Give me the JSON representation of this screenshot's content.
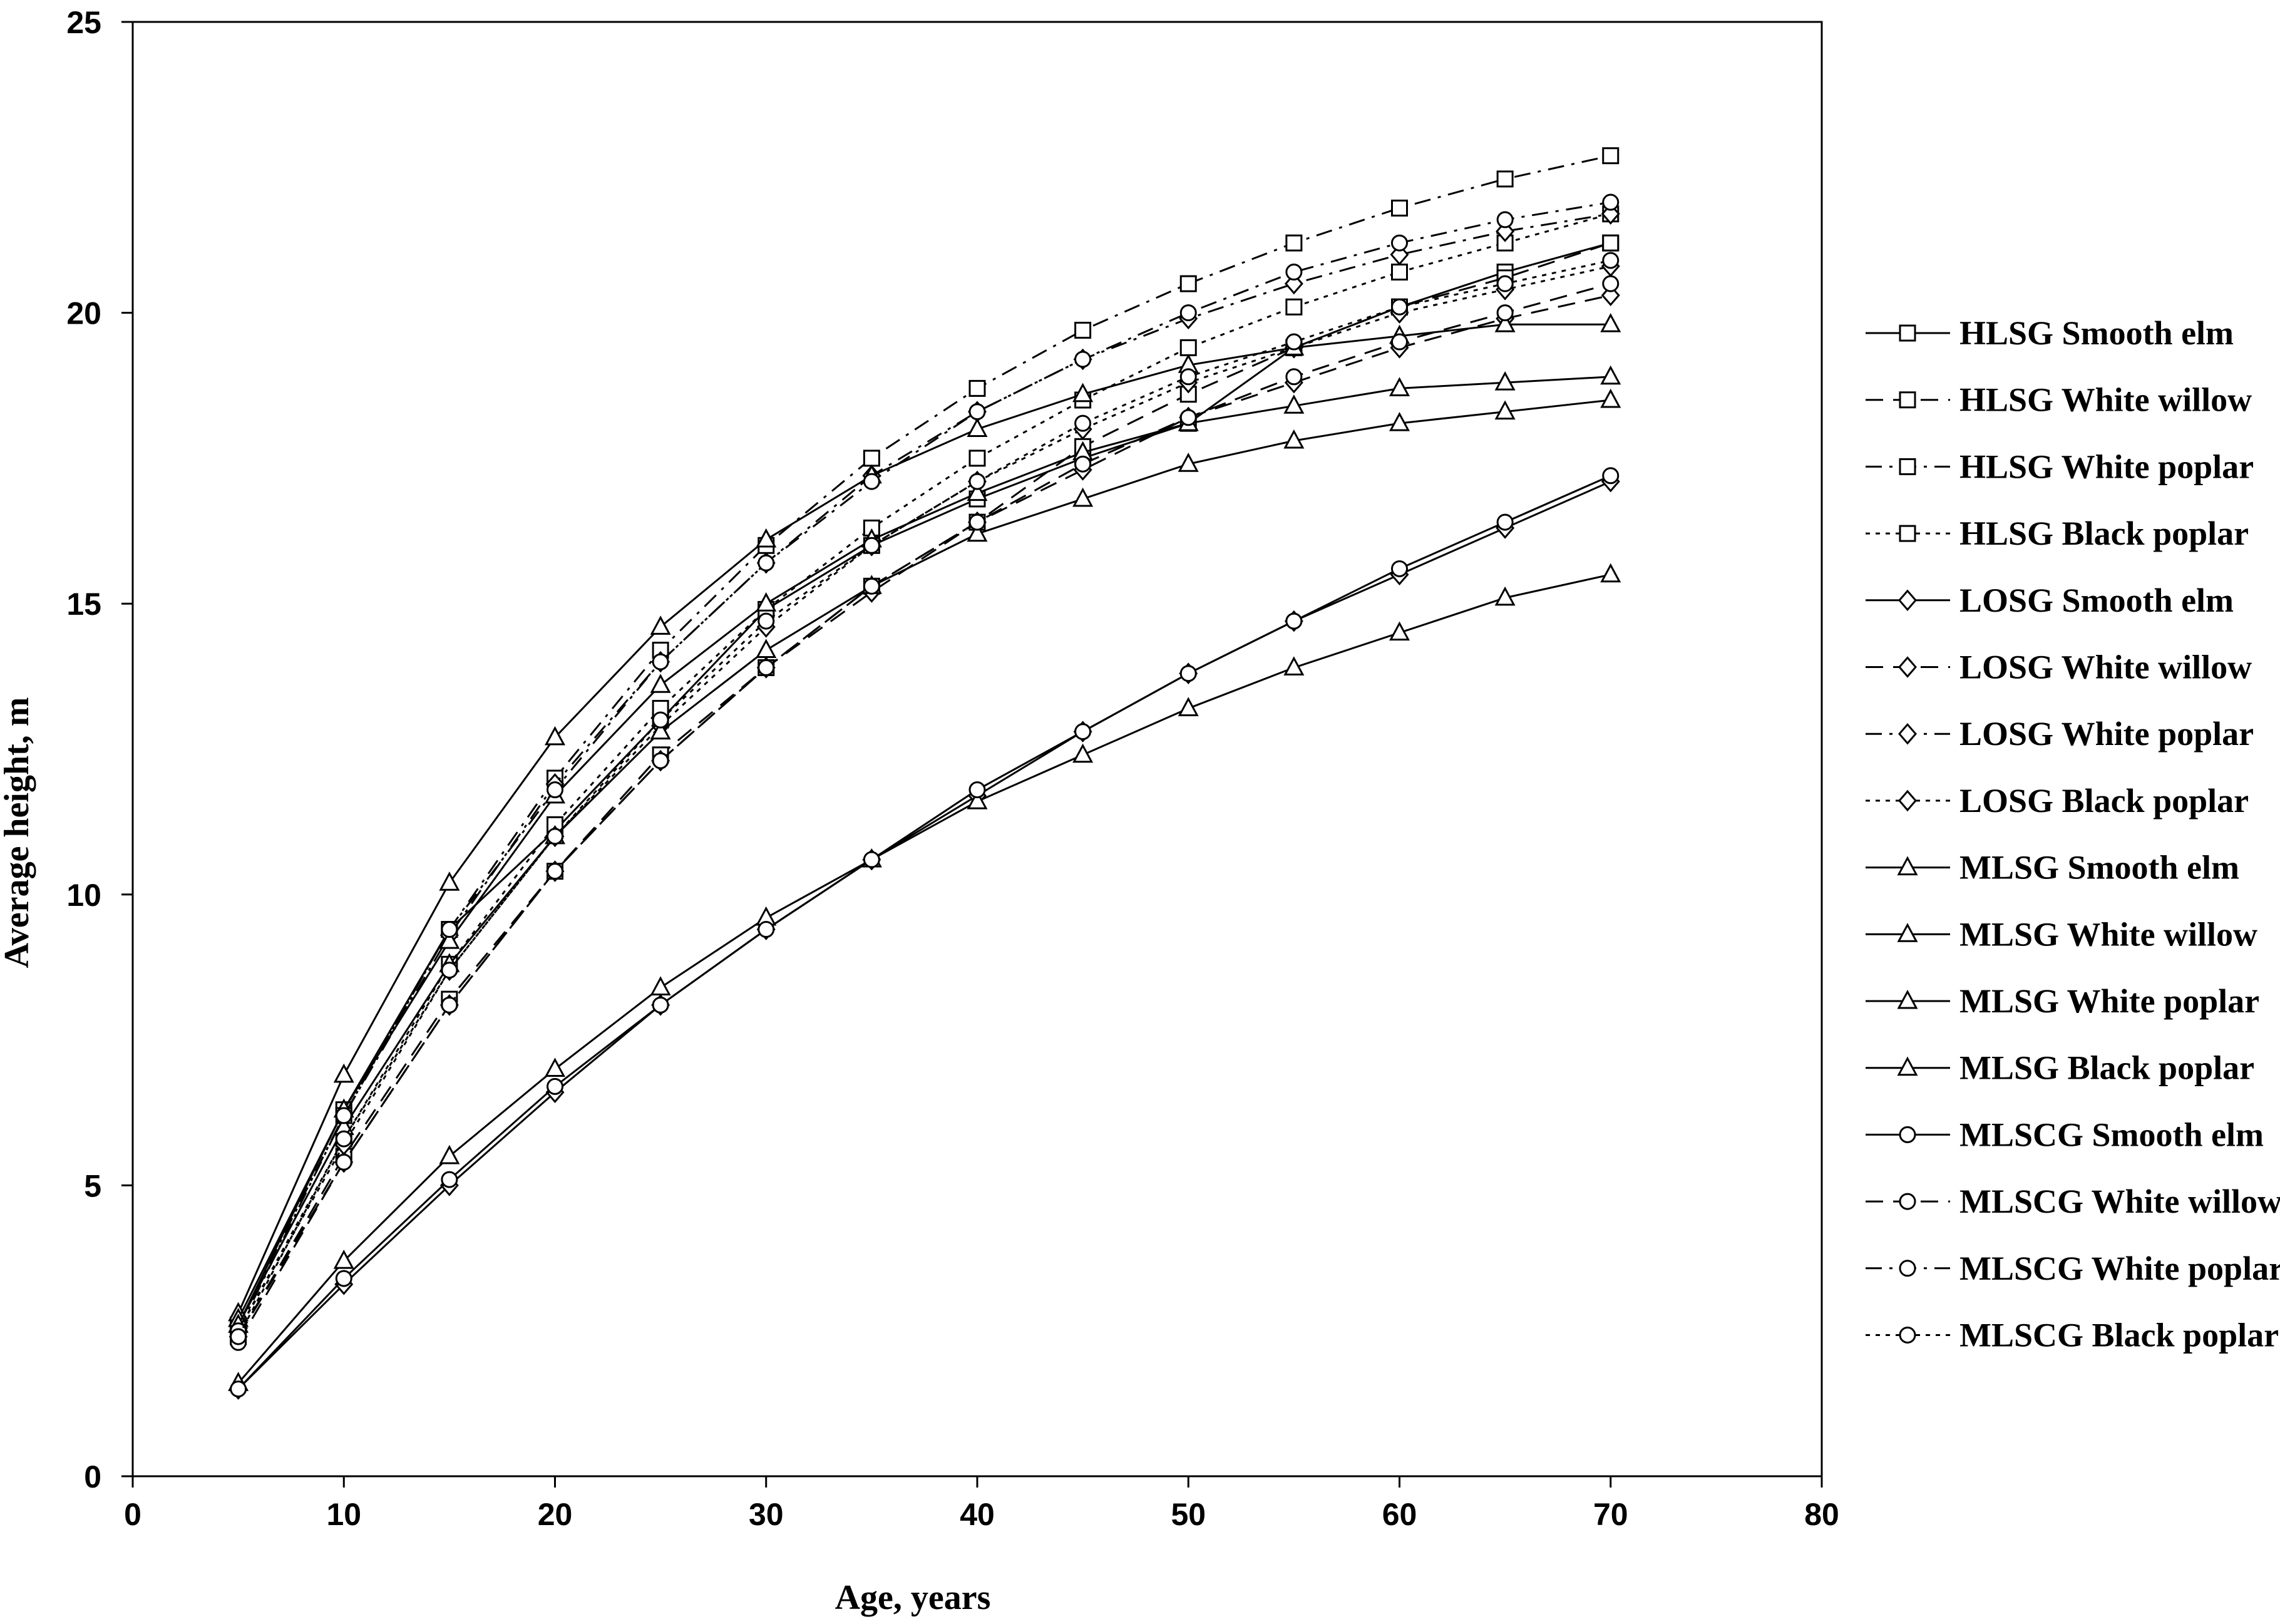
{
  "chart_data": {
    "type": "line",
    "xlabel": "Age, years",
    "ylabel": "Average height, m",
    "xlim": [
      0,
      80
    ],
    "ylim": [
      0,
      25
    ],
    "x_ticks": [
      "0",
      "10",
      "20",
      "30",
      "40",
      "50",
      "60",
      "70",
      "80"
    ],
    "y_ticks": [
      "0",
      "5",
      "10",
      "15",
      "20",
      "25"
    ],
    "grid": false,
    "legend_position": "right",
    "x": [
      5,
      10,
      15,
      20,
      25,
      30,
      35,
      40,
      45,
      50,
      55,
      60,
      65,
      70
    ],
    "series": [
      {
        "name": "HLSG Smooth  elm",
        "marker": "square",
        "dash": "solid",
        "values": [
          2.6,
          6.3,
          9.4,
          11.1,
          13.0,
          14.9,
          16.0,
          16.8,
          17.5,
          18.1,
          19.4,
          20.1,
          20.7,
          21.2
        ]
      },
      {
        "name": "HLSG White willow",
        "marker": "square",
        "dash": "dash",
        "values": [
          2.4,
          5.5,
          8.2,
          10.4,
          12.4,
          13.9,
          15.3,
          16.4,
          17.7,
          18.6,
          19.4,
          20.1,
          20.6,
          21.2
        ]
      },
      {
        "name": "HLSG White poplar",
        "marker": "square",
        "dash": "dashdot",
        "values": [
          2.6,
          6.2,
          9.4,
          12.0,
          14.2,
          16.0,
          17.5,
          18.7,
          19.7,
          20.5,
          21.2,
          21.8,
          22.3,
          22.7
        ]
      },
      {
        "name": "HLSG Black poplar",
        "marker": "square",
        "dash": "dot",
        "values": [
          2.5,
          5.8,
          8.8,
          11.2,
          13.2,
          14.9,
          16.3,
          17.5,
          18.5,
          19.4,
          20.1,
          20.7,
          21.2,
          21.7
        ]
      },
      {
        "name": "LOSG Smooth  elm",
        "marker": "diamond",
        "dash": "solid",
        "values": [
          1.5,
          3.3,
          5.0,
          6.6,
          8.1,
          9.4,
          10.6,
          11.7,
          12.8,
          13.8,
          14.7,
          15.5,
          16.3,
          17.1
        ]
      },
      {
        "name": "LOSG White willow",
        "marker": "diamond",
        "dash": "dash",
        "values": [
          2.4,
          5.4,
          8.1,
          10.4,
          12.3,
          13.9,
          15.2,
          16.4,
          17.3,
          18.2,
          18.8,
          19.4,
          19.9,
          20.3
        ]
      },
      {
        "name": "LOSG White poplar",
        "marker": "diamond",
        "dash": "dashdot",
        "values": [
          2.6,
          6.2,
          9.3,
          11.9,
          14.0,
          15.7,
          17.2,
          18.3,
          19.2,
          19.9,
          20.5,
          21.0,
          21.4,
          21.7
        ]
      },
      {
        "name": "LOSG Black poplar",
        "marker": "diamond",
        "dash": "dot",
        "values": [
          2.5,
          5.7,
          8.7,
          11.0,
          12.9,
          14.6,
          16.0,
          17.1,
          18.0,
          18.8,
          19.4,
          20.0,
          20.4,
          20.8
        ]
      },
      {
        "name": "MLSG Smooth  elm",
        "marker": "triangle",
        "dash": "solid",
        "values": [
          2.8,
          6.9,
          10.2,
          12.7,
          14.6,
          16.1,
          17.2,
          18.0,
          18.6,
          19.1,
          19.4,
          19.6,
          19.8,
          19.8
        ]
      },
      {
        "name": "MLSG White willow",
        "marker": "triangle",
        "dash": "solid",
        "values": [
          2.7,
          6.3,
          9.2,
          11.7,
          13.6,
          15.0,
          16.1,
          16.9,
          17.6,
          18.1,
          18.4,
          18.7,
          18.8,
          18.9
        ]
      },
      {
        "name": "MLSG White poplar",
        "marker": "triangle",
        "dash": "solid",
        "values": [
          2.6,
          6.0,
          8.8,
          11.0,
          12.8,
          14.2,
          15.3,
          16.2,
          16.8,
          17.4,
          17.8,
          18.1,
          18.3,
          18.5
        ]
      },
      {
        "name": "MLSG Black poplar",
        "marker": "triangle",
        "dash": "solid",
        "values": [
          1.6,
          3.7,
          5.5,
          7.0,
          8.4,
          9.6,
          10.6,
          11.6,
          12.4,
          13.2,
          13.9,
          14.5,
          15.1,
          15.5
        ]
      },
      {
        "name": "MLSCG Smooth elm",
        "marker": "circle",
        "dash": "solid",
        "values": [
          1.5,
          3.4,
          5.1,
          6.7,
          8.1,
          9.4,
          10.6,
          11.8,
          12.8,
          13.8,
          14.7,
          15.6,
          16.4,
          17.2
        ]
      },
      {
        "name": "MLSCG White willow",
        "marker": "circle",
        "dash": "dash",
        "values": [
          2.3,
          5.4,
          8.1,
          10.4,
          12.3,
          13.9,
          15.3,
          16.4,
          17.4,
          18.2,
          18.9,
          19.5,
          20.0,
          20.5
        ]
      },
      {
        "name": "MLSCG White poplar",
        "marker": "circle",
        "dash": "dashdot",
        "values": [
          2.5,
          6.2,
          9.4,
          11.8,
          14.0,
          15.7,
          17.1,
          18.3,
          19.2,
          20.0,
          20.7,
          21.2,
          21.6,
          21.9
        ]
      },
      {
        "name": "MLSCG Black poplar",
        "marker": "circle",
        "dash": "dot",
        "values": [
          2.4,
          5.8,
          8.7,
          11.0,
          13.0,
          14.7,
          16.0,
          17.1,
          18.1,
          18.9,
          19.5,
          20.1,
          20.5,
          20.9
        ]
      }
    ]
  }
}
